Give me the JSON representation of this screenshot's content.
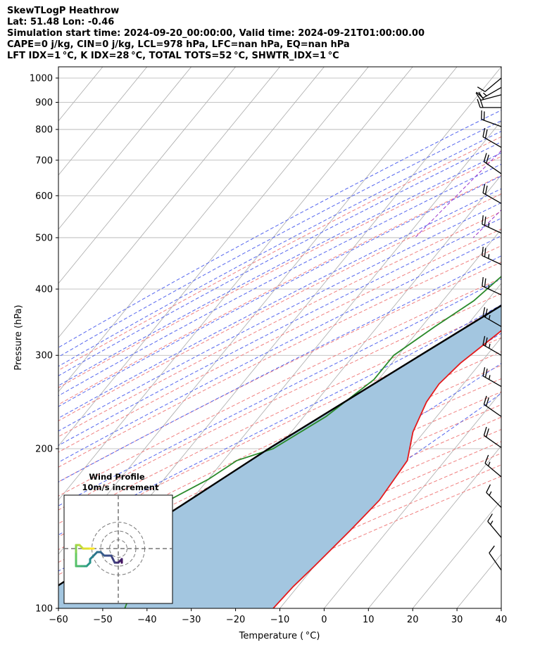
{
  "header": {
    "title": "SkewTLogP Heathrow",
    "location": "Lat: 51.48   Lon: -0.46",
    "time": "Simulation start time: 2024-09-20_00:00:00, Valid time: 2024-09-21T01:00:00.00",
    "params1": "CAPE=0 j/kg, CIN=0 j/kg, LCL=978 hPa, LFC=nan hPa, EQ=nan hPa",
    "params2": "LFT IDX=1 °C, K IDX=28 °C, TOTAL TOTS=52 °C, SHWTR_IDX=1 °C"
  },
  "chart_data": {
    "type": "line",
    "xlabel": "Temperature ( °C)",
    "ylabel": "Pressure (hPa)",
    "xlim": [
      -60,
      40
    ],
    "ylim": [
      1050,
      100
    ],
    "y_scale": "log",
    "skew": true,
    "grid": true,
    "x_ticks": [
      -60,
      -50,
      -40,
      -30,
      -20,
      -10,
      0,
      10,
      20,
      30,
      40
    ],
    "y_ticks": [
      100,
      200,
      300,
      400,
      500,
      600,
      700,
      800,
      900,
      1000
    ],
    "colors": {
      "temperature": "#e41a1c",
      "dewpoint": "#2a8a2a",
      "parcel": "#000000",
      "shade": "#a3c6e0",
      "dry_adiabat": "#f08080",
      "moist_adiabat": "#5566ee",
      "mixing_ratio": "#9933cc",
      "isotherm": "#aaaaaa"
    },
    "series": [
      {
        "key": "temperature",
        "x": [
          17.5,
          16,
          13,
          10,
          6,
          2,
          -3,
          -8,
          -11.5,
          -14.5,
          -15.5,
          -15,
          -12.5,
          -8.5,
          -7.5,
          -8.5,
          -10,
          -11,
          -11.5
        ],
        "y": [
          1010,
          960,
          900,
          800,
          700,
          600,
          500,
          400,
          330,
          290,
          265,
          245,
          215,
          190,
          160,
          140,
          120,
          110,
          100
        ]
      },
      {
        "key": "dewpoint",
        "x": [
          14,
          14,
          12,
          7,
          0,
          -5,
          -13.5,
          -22,
          -21,
          -23,
          -27,
          -31,
          -31,
          -35,
          -41,
          -47,
          -50,
          -55,
          -55,
          -50,
          -45
        ],
        "y": [
          1010,
          960,
          880,
          800,
          700,
          600,
          500,
          480,
          430,
          380,
          340,
          300,
          270,
          230,
          200,
          190,
          175,
          160,
          145,
          125,
          100
        ]
      },
      {
        "key": "parcel",
        "x": [
          16.7,
          15.3,
          13.4,
          10.4,
          6.6,
          1.8,
          -4.6,
          -12.9,
          -25,
          -42,
          -68
        ],
        "y": [
          1010,
          978,
          900,
          800,
          700,
          600,
          500,
          400,
          300,
          200,
          100
        ]
      }
    ],
    "wind_profile": {
      "title": "Wind Profile",
      "subtitle": "10m/s increment",
      "u": [
        1,
        1,
        1,
        0,
        -1,
        -2,
        -4,
        -5,
        -6,
        -7,
        -8,
        -8,
        -9,
        -10,
        -11,
        -12,
        -12,
        -12,
        -12,
        -11,
        -10,
        -8,
        -7
      ],
      "v": [
        -3,
        -4,
        -3,
        -4,
        -4,
        -2,
        -2,
        -1,
        -1,
        -2,
        -3,
        -4,
        -5,
        -5,
        -5,
        -5,
        -3,
        -1,
        1,
        1,
        0,
        0,
        0
      ]
    },
    "wind_barbs": [
      {
        "p": 1000,
        "dir": 230,
        "spd": 10
      },
      {
        "p": 960,
        "dir": 240,
        "spd": 15
      },
      {
        "p": 930,
        "dir": 255,
        "spd": 20
      },
      {
        "p": 880,
        "dir": 270,
        "spd": 20
      },
      {
        "p": 810,
        "dir": 290,
        "spd": 20
      },
      {
        "p": 740,
        "dir": 300,
        "spd": 20
      },
      {
        "p": 660,
        "dir": 305,
        "spd": 20
      },
      {
        "p": 580,
        "dir": 300,
        "spd": 20
      },
      {
        "p": 510,
        "dir": 295,
        "spd": 25
      },
      {
        "p": 445,
        "dir": 295,
        "spd": 25
      },
      {
        "p": 390,
        "dir": 295,
        "spd": 25
      },
      {
        "p": 340,
        "dir": 300,
        "spd": 25
      },
      {
        "p": 300,
        "dir": 300,
        "spd": 25
      },
      {
        "p": 262,
        "dir": 300,
        "spd": 25
      },
      {
        "p": 230,
        "dir": 305,
        "spd": 20
      },
      {
        "p": 201,
        "dir": 305,
        "spd": 20
      },
      {
        "p": 177,
        "dir": 310,
        "spd": 15
      },
      {
        "p": 155,
        "dir": 315,
        "spd": 15
      },
      {
        "p": 136,
        "dir": 320,
        "spd": 15
      },
      {
        "p": 118,
        "dir": 325,
        "spd": 10
      }
    ]
  }
}
